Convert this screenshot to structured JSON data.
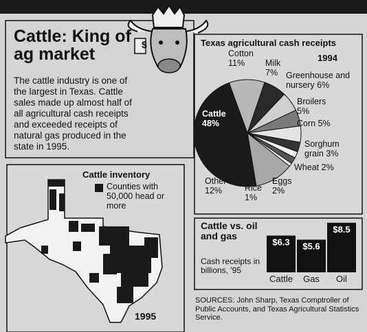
{
  "masthead_tag": "$",
  "headline": "Cattle: King of ag market",
  "body": "The cattle industry is one of the largest in Texas. Cattle sales made up almost half of all agricultural cash receipts and exceeded receipts of natural gas produced in the state in 1995.",
  "map": {
    "title": "Cattle inventory",
    "legend": "Counties with 50,000 head or more",
    "year": "1995"
  },
  "sources": "SOURCES: John Sharp, Texas Comptroller of Public Accounts, and Texas Agricultural Statistics Service.",
  "chart_data": [
    {
      "type": "pie",
      "title": "Texas agricultural cash receipts",
      "subtitle": "1994",
      "categories": [
        "Cattle",
        "Cotton",
        "Milk",
        "Greenhouse and nursery",
        "Broilers",
        "Corn",
        "Sorghum grain",
        "Wheat",
        "Eggs",
        "Rice",
        "Other"
      ],
      "values": [
        48,
        11,
        7,
        6,
        5,
        5,
        3,
        2,
        2,
        1,
        12
      ],
      "value_labels": [
        "48%",
        "11%",
        "7%",
        "6%",
        "5%",
        "5%",
        "3%",
        "2%",
        "2%",
        "1%",
        "12%"
      ],
      "colors": [
        "#1a1a1a",
        "#b8b8b8",
        "#2a2a2a",
        "#d0d0d0",
        "#7a7a7a",
        "#e4e4e4",
        "#333333",
        "#f0f0f0",
        "#555555",
        "#fafafa",
        "#a8a8a8"
      ]
    },
    {
      "type": "bar",
      "title": "Cattle vs. oil and gas",
      "subtitle": "Cash receipts in billions, '95",
      "categories": [
        "Cattle",
        "Gas",
        "Oil"
      ],
      "values": [
        6.3,
        5.6,
        8.5
      ],
      "value_labels": [
        "$6.3",
        "$5.6",
        "$8.5"
      ],
      "color": "#111111"
    }
  ]
}
